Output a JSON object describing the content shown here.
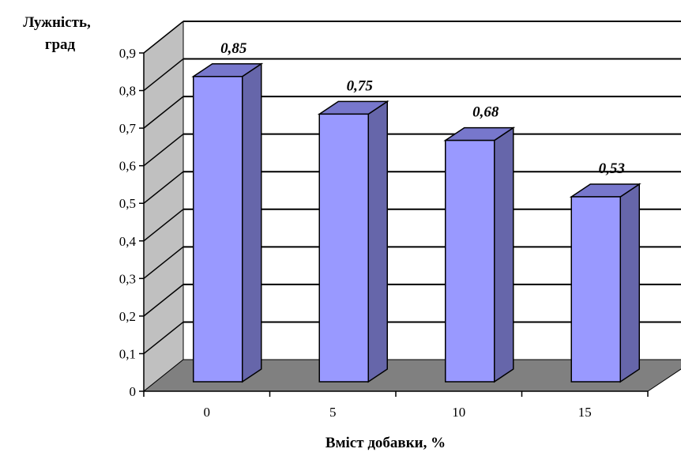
{
  "chart_data": {
    "type": "bar",
    "categories": [
      "0",
      "5",
      "10",
      "15"
    ],
    "values": [
      0.85,
      0.75,
      0.68,
      0.53
    ],
    "data_labels": [
      "0,85",
      "0,75",
      "0,68",
      "0,53"
    ],
    "ylabel_line1": "Лужність,",
    "ylabel_line2": "град",
    "xlabel": "Вміст добавки, %",
    "ylim": [
      0,
      0.9
    ],
    "y_ticks": [
      0,
      0.1,
      0.2,
      0.3,
      0.4,
      0.5,
      0.6,
      0.7,
      0.8,
      0.9
    ],
    "y_tick_labels": [
      "0",
      "0,1",
      "0,2",
      "0,3",
      "0,4",
      "0,5",
      "0,6",
      "0,7",
      "0,8",
      "0,9"
    ],
    "grid": true,
    "style": "3d-column",
    "colors": {
      "bar_front": "#9999ff",
      "bar_side": "#6666aa",
      "bar_top": "#7777cc",
      "wall": "#c0c0c0",
      "floor": "#808080",
      "plot_back": "#ffffff"
    }
  }
}
